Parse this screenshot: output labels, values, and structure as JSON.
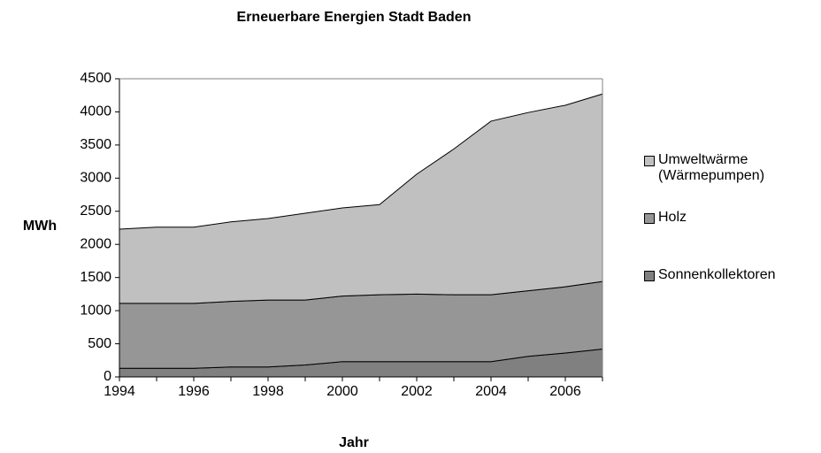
{
  "chart_data": {
    "type": "stacked_area",
    "title": "Erneuerbare Energien Stadt Baden",
    "x_label": "Jahr",
    "y_label": "MWh",
    "x": [
      1994,
      1995,
      1996,
      1997,
      1998,
      1999,
      2000,
      2001,
      2002,
      2003,
      2004,
      2005,
      2006,
      2007
    ],
    "series": [
      {
        "name": "Sonnenkollektoren",
        "color": "#808080",
        "values": [
          130,
          130,
          130,
          150,
          150,
          180,
          230,
          230,
          230,
          230,
          230,
          310,
          360,
          420
        ]
      },
      {
        "name": "Holz",
        "color": "#969696",
        "values": [
          980,
          980,
          980,
          990,
          1010,
          980,
          990,
          1010,
          1020,
          1010,
          1010,
          990,
          1000,
          1020
        ]
      },
      {
        "name": "Umweltwärme (Wärmepumpen)",
        "color": "#c0c0c0",
        "values": [
          1120,
          1150,
          1150,
          1200,
          1230,
          1310,
          1330,
          1360,
          1810,
          2200,
          2620,
          2690,
          2740,
          2830
        ]
      }
    ],
    "xlim": [
      1994,
      2007
    ],
    "xticks": [
      1994,
      1996,
      1998,
      2000,
      2002,
      2004,
      2006
    ],
    "ylim": [
      0,
      4500
    ],
    "yticks": [
      0,
      500,
      1000,
      1500,
      2000,
      2500,
      3000,
      3500,
      4000,
      4500
    ],
    "legend": "right"
  }
}
